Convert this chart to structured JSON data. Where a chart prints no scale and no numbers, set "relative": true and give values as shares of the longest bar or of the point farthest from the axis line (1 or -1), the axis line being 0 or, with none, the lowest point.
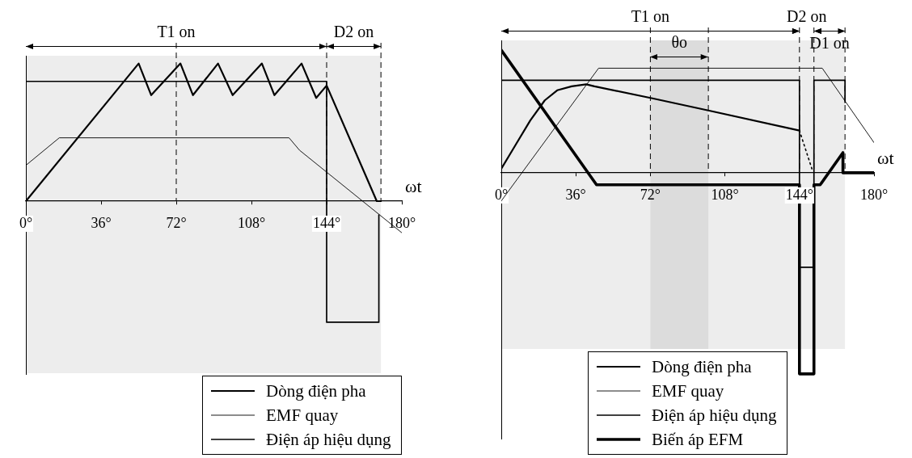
{
  "chart_data": [
    {
      "type": "line",
      "relative": true,
      "xlabel": "ωt",
      "xlim": [
        0,
        180
      ],
      "xticks": [
        {
          "value": 0,
          "label": "0°"
        },
        {
          "value": 36,
          "label": "36°"
        },
        {
          "value": 72,
          "label": "72°"
        },
        {
          "value": 108,
          "label": "108°"
        },
        {
          "value": 144,
          "label": "144°"
        },
        {
          "value": 180,
          "label": "180°"
        }
      ],
      "marker": "none",
      "legend": "bottom right",
      "series": [
        {
          "name": "Dòng điện pha",
          "color": "#000000",
          "line_style": "solid",
          "x": [
            0,
            54,
            60,
            74,
            80,
            92,
            99,
            113,
            119,
            132,
            139,
            144,
            168,
            170
          ],
          "values": [
            0,
            1,
            0.77,
            1,
            0.77,
            1,
            0.77,
            1,
            0.77,
            1,
            0.75,
            0.84,
            0,
            0
          ]
        },
        {
          "name": "EMF quay",
          "color": "#000000",
          "line_style": "solid",
          "x": [
            0,
            16,
            126,
            131,
            180
          ],
          "values": [
            0.26,
            0.46,
            0.46,
            0.37,
            -0.23
          ]
        },
        {
          "name": "Điện áp hiệu dụng",
          "color": "#000000",
          "line_style": "solid",
          "x": [
            0,
            144,
            144,
            169,
            169
          ],
          "values": [
            0.87,
            0.87,
            -0.88,
            -0.88,
            -0.1
          ]
        }
      ],
      "ref_lines": [
        {
          "axis": "x",
          "value": 72,
          "line_style": "dashed"
        },
        {
          "axis": "x",
          "value": 144,
          "line_style": "dashed"
        },
        {
          "axis": "x",
          "value": 170,
          "line_style": "dashed"
        }
      ],
      "bands": [
        {
          "axis": "x",
          "from": 0,
          "to": 144,
          "label": "T1 on"
        },
        {
          "axis": "x",
          "from": 144,
          "to": 170,
          "label": "D2 on"
        }
      ]
    },
    {
      "type": "line",
      "relative": true,
      "xlabel": "ωt",
      "xlim": [
        0,
        180
      ],
      "xticks": [
        {
          "value": 0,
          "label": "0°"
        },
        {
          "value": 36,
          "label": "36°"
        },
        {
          "value": 72,
          "label": "72°"
        },
        {
          "value": 108,
          "label": "108°"
        },
        {
          "value": 144,
          "label": "144°"
        },
        {
          "value": 180,
          "label": "180°"
        }
      ],
      "marker": "none",
      "legend": "bottom",
      "series": [
        {
          "name": "Dòng điện pha",
          "color": "#000000",
          "line_style": "solid",
          "x": [
            0,
            7,
            14,
            21,
            27,
            34,
            41,
            45,
            73,
            100,
            144
          ],
          "values": [
            0.02,
            0.14,
            0.26,
            0.36,
            0.41,
            0.43,
            0.44,
            0.43,
            0.37,
            0.31,
            0.21
          ]
        },
        {
          "name": "EMF quay",
          "color": "#000000",
          "line_style": "solid",
          "x": [
            0,
            47,
            155,
            180
          ],
          "values": [
            -0.14,
            0.52,
            0.52,
            0.15
          ]
        },
        {
          "name": "Điện áp hiệu dụng",
          "color": "#000000",
          "line_style": "solid",
          "x": [
            0,
            144,
            144,
            151,
            151,
            166,
            166
          ],
          "values": [
            0.46,
            0.46,
            -0.47,
            -0.47,
            0.46,
            0.46,
            0.35
          ]
        },
        {
          "name": "Biến áp EFM",
          "color": "#000000",
          "line_style": "solid",
          "x": [
            0,
            46,
            144,
            144,
            151,
            151,
            154,
            165,
            165,
            180
          ],
          "values": [
            0.61,
            -0.06,
            -0.06,
            -1,
            -1,
            -0.06,
            -0.06,
            0.1,
            0,
            0
          ]
        },
        {
          "color": "#000000",
          "line_style": "dotted",
          "x": [
            144,
            150
          ],
          "values": [
            0.21,
            0.02
          ]
        }
      ],
      "ref_lines": [
        {
          "axis": "x",
          "value": 72,
          "line_style": "dashed"
        },
        {
          "axis": "x",
          "value": 100,
          "line_style": "dashed"
        },
        {
          "axis": "x",
          "value": 144,
          "line_style": "dashed"
        },
        {
          "axis": "x",
          "value": 151,
          "line_style": "dashed"
        },
        {
          "axis": "x",
          "value": 166,
          "line_style": "dashed"
        }
      ],
      "bands": [
        {
          "axis": "x",
          "from": 0,
          "to": 144,
          "label": "T1 on"
        },
        {
          "axis": "x",
          "from": 144,
          "to": 151,
          "label": "D2 on"
        },
        {
          "axis": "x",
          "from": 151,
          "to": 166,
          "label": "D1 on"
        },
        {
          "axis": "x",
          "from": 72,
          "to": 100,
          "label": "θo"
        }
      ]
    }
  ]
}
